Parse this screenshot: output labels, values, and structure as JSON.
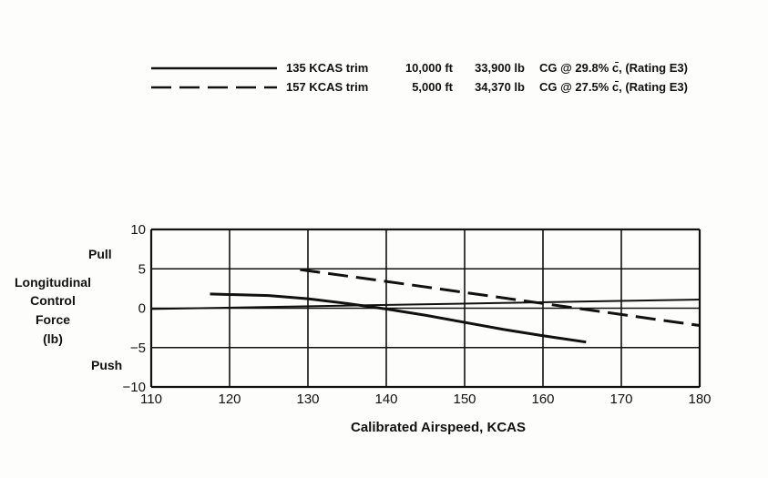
{
  "chart_data": {
    "type": "line",
    "title": "",
    "xlabel": "Calibrated Airspeed, KCAS",
    "ylabel_lines": [
      "Longitudinal",
      "Control",
      "Force",
      "(lb)"
    ],
    "pull_label": "Pull",
    "push_label": "Push",
    "xlim": [
      110,
      180
    ],
    "ylim": [
      -10,
      10
    ],
    "xticks": [
      110,
      120,
      130,
      140,
      150,
      160,
      170,
      180
    ],
    "yticks": [
      10,
      5,
      0,
      -5,
      -10
    ],
    "xtick_labels": [
      "110",
      "120",
      "130",
      "140",
      "150",
      "160",
      "170",
      "180"
    ],
    "ytick_labels": [
      "10",
      "5",
      "0",
      "−5",
      "−10"
    ],
    "grid": true,
    "legend_position": "top-right",
    "series": [
      {
        "style": "solid",
        "legend": {
          "trim": "135 KCAS trim",
          "altitude": "10,000 ft",
          "weight": "33,900 lb",
          "cg": "CG @ 29.8% c̄, (Rating E3)"
        },
        "x": [
          117.5,
          125,
          130,
          135,
          140,
          145,
          150,
          155,
          160,
          165.5
        ],
        "y": [
          1.8,
          1.6,
          1.2,
          0.6,
          -0.1,
          -0.9,
          -1.8,
          -2.7,
          -3.5,
          -4.3
        ]
      },
      {
        "style": "dashed",
        "legend": {
          "trim": "157 KCAS trim",
          "altitude": "5,000 ft",
          "weight": "34,370 lb",
          "cg": "CG @ 27.5% c̄, (Rating E3)"
        },
        "x": [
          129,
          140,
          150,
          160,
          170,
          180
        ],
        "y": [
          4.9,
          3.4,
          2.0,
          0.6,
          -0.8,
          -2.2
        ]
      },
      {
        "style": "reference",
        "x": [
          110,
          180
        ],
        "y": [
          -0.1,
          1.1
        ]
      }
    ]
  }
}
